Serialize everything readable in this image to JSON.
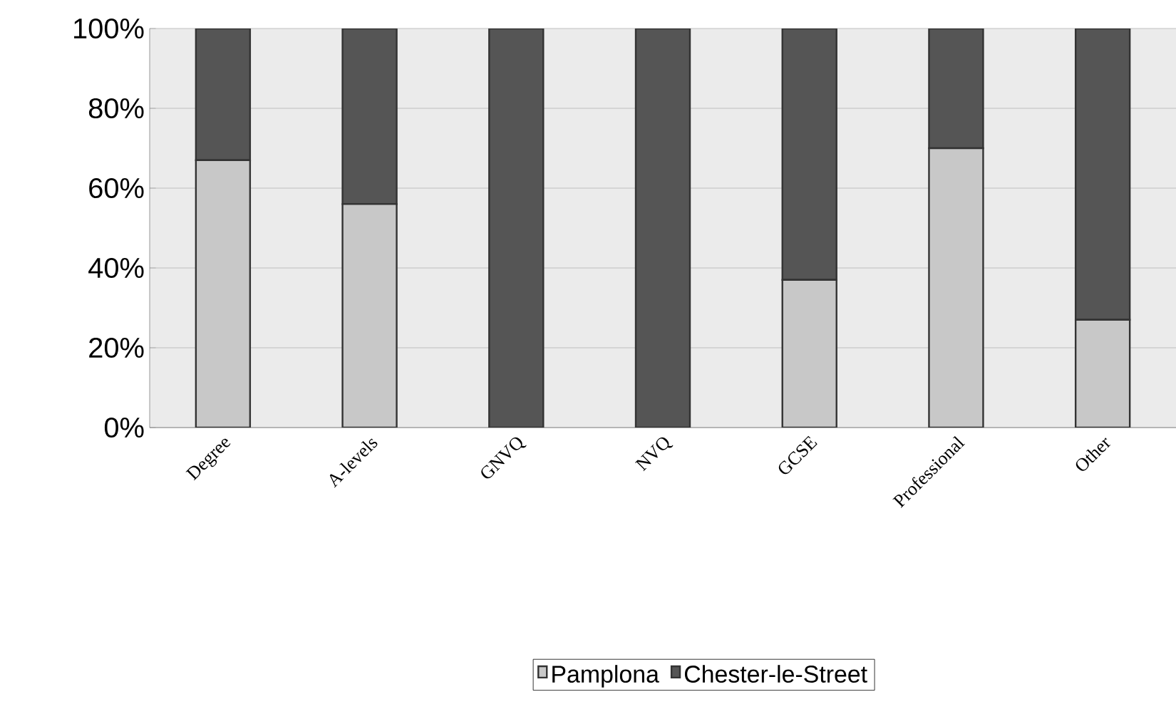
{
  "chart_data": {
    "type": "bar",
    "stacked": true,
    "categories": [
      "Degree",
      "A-levels",
      "GNVQ",
      "NVQ",
      "GCSE",
      "Professional",
      "Other"
    ],
    "series": [
      {
        "name": "Pamplona",
        "color": "#c8c8c8",
        "values": [
          67,
          56,
          0,
          0,
          37,
          70,
          27
        ]
      },
      {
        "name": "Chester-le-Street",
        "color": "#555555",
        "values": [
          33,
          44,
          100,
          100,
          63,
          30,
          73
        ]
      }
    ],
    "ylim": [
      0,
      100
    ],
    "yticks": [
      {
        "value": 0,
        "label": "0%"
      },
      {
        "value": 20,
        "label": "20%"
      },
      {
        "value": 40,
        "label": "40%"
      },
      {
        "value": 60,
        "label": "60%"
      },
      {
        "value": 80,
        "label": "80%"
      },
      {
        "value": 100,
        "label": "100%"
      }
    ],
    "grid": "y",
    "legend": "bottom"
  }
}
